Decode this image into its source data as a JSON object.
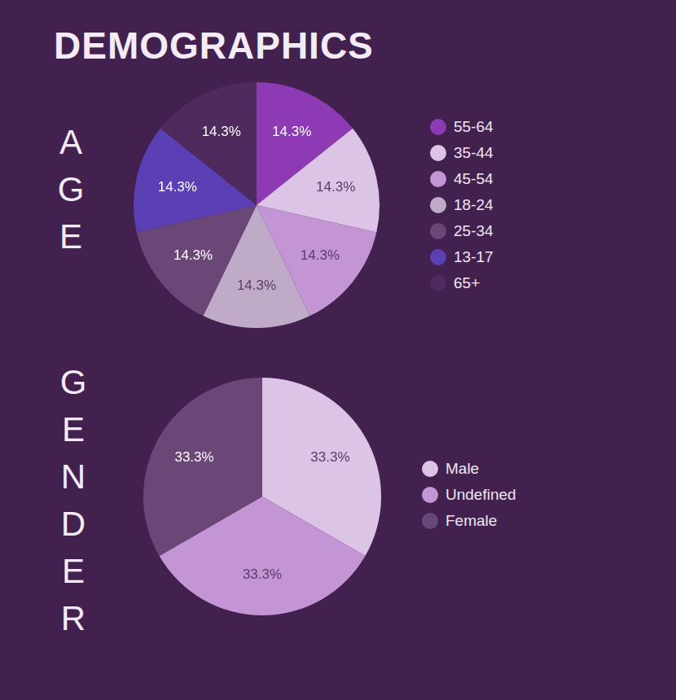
{
  "title": "DEMOGRAPHICS",
  "chart_data": [
    {
      "type": "pie",
      "title": "AGE",
      "categories": [
        "55-64",
        "35-44",
        "45-54",
        "18-24",
        "25-34",
        "13-17",
        "65+"
      ],
      "values": [
        14.3,
        14.3,
        14.3,
        14.3,
        14.3,
        14.3,
        14.3
      ],
      "value_labels": [
        "14.3%",
        "14.3%",
        "14.3%",
        "14.3%",
        "14.3%",
        "14.3%",
        "14.3%"
      ],
      "colors": [
        "#8e3ab5",
        "#dcc4e6",
        "#c495d4",
        "#bfaac8",
        "#6b4777",
        "#5a3fb5",
        "#4e2a5e"
      ],
      "data_labels": true,
      "legend": "right"
    },
    {
      "type": "pie",
      "title": "GENDER",
      "categories": [
        "Male",
        "Undefined",
        "Female"
      ],
      "values": [
        33.3,
        33.3,
        33.3
      ],
      "value_labels": [
        "33.3%",
        "33.3%",
        "33.3%"
      ],
      "colors": [
        "#dcc4e6",
        "#c495d4",
        "#6b4777"
      ],
      "data_labels": true,
      "legend": "right"
    }
  ]
}
